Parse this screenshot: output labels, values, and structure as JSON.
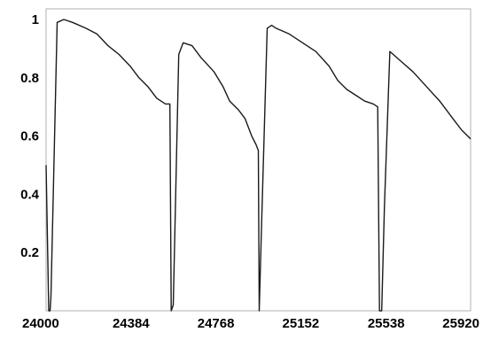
{
  "chart_data": {
    "type": "line",
    "title": "",
    "xlabel": "",
    "ylabel": "",
    "xlim": [
      24000,
      25920
    ],
    "ylim": [
      0,
      1
    ],
    "x_ticks": [
      {
        "value": 24000,
        "label": "24000"
      },
      {
        "value": 24384,
        "label": "24384"
      },
      {
        "value": 24768,
        "label": "24768"
      },
      {
        "value": 25152,
        "label": "25152"
      },
      {
        "value": 25538,
        "label": "25538"
      },
      {
        "value": 25920,
        "label": "25920"
      }
    ],
    "y_ticks": [
      {
        "value": 0.2,
        "label": "0.2"
      },
      {
        "value": 0.4,
        "label": "0.4"
      },
      {
        "value": 0.6,
        "label": "0.6"
      },
      {
        "value": 0.8,
        "label": "0.8"
      },
      {
        "value": 1,
        "label": "1"
      }
    ],
    "grid": false,
    "legend": "none",
    "colors": {
      "line": "#1a1a1a",
      "axes": "#b0b0b0",
      "text": "#000000"
    },
    "series": [
      {
        "x": [
          24000,
          24006,
          24012,
          24018,
          24022,
          24050,
          24080,
          24120,
          24180,
          24230,
          24280,
          24330,
          24380,
          24420,
          24460,
          24500,
          24540,
          24560,
          24566,
          24575,
          24600,
          24620,
          24660,
          24700,
          24760,
          24800,
          24830,
          24870,
          24900,
          24930,
          24950,
          24960,
          24964,
          24975,
          25000,
          25020,
          25040,
          25100,
          25160,
          25220,
          25280,
          25320,
          25360,
          25400,
          25440,
          25480,
          25500,
          25508,
          25518,
          25530,
          25555,
          25570,
          25600,
          25660,
          25720,
          25780,
          25840,
          25880,
          25920
        ],
        "y": [
          0.5,
          0.25,
          0.0,
          0.0,
          0.05,
          0.99,
          1.0,
          0.99,
          0.97,
          0.95,
          0.91,
          0.88,
          0.84,
          0.8,
          0.77,
          0.73,
          0.71,
          0.71,
          0.0,
          0.02,
          0.88,
          0.92,
          0.91,
          0.87,
          0.82,
          0.77,
          0.72,
          0.69,
          0.66,
          0.6,
          0.57,
          0.55,
          0.0,
          0.3,
          0.97,
          0.98,
          0.97,
          0.95,
          0.92,
          0.89,
          0.84,
          0.79,
          0.76,
          0.74,
          0.72,
          0.71,
          0.7,
          0.0,
          0.0,
          0.35,
          0.89,
          0.88,
          0.86,
          0.82,
          0.77,
          0.72,
          0.66,
          0.62,
          0.59
        ]
      }
    ]
  }
}
